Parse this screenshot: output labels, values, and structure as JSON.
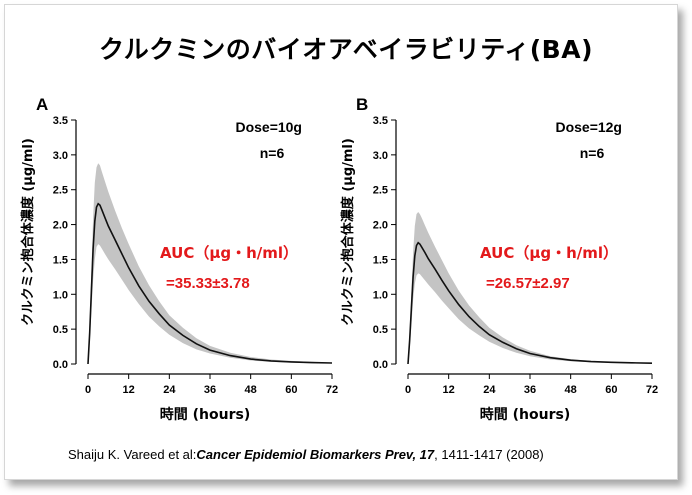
{
  "title": "クルクミンのバイオアベイラビリティ(BA)",
  "citation": {
    "authors": "Shaiju K. Vareed et al:",
    "journal": "Cancer Epidemiol Biomarkers Prev, 17",
    "pages": ", 1411-1417 (2008)"
  },
  "colors": {
    "band": "#c4c4c4",
    "line": "#111111",
    "auc": "#e3191b"
  },
  "chart_data": [
    {
      "type": "line",
      "panel_label": "A",
      "annotation_dose": "Dose=10g",
      "annotation_n": "n=6",
      "auc_label": "AUC（μg・h/ml）",
      "auc_value": "=35.33±3.78",
      "xlabel": "時間 (hours)",
      "ylabel": "クルクミン抱合体濃度 (μg/ml)",
      "xlim": [
        0,
        72
      ],
      "ylim": [
        0,
        3.5
      ],
      "xticks": [
        "0",
        "12",
        "24",
        "36",
        "48",
        "60",
        "72"
      ],
      "yticks": [
        "0.0",
        "0.5",
        "1.0",
        "1.5",
        "2.0",
        "2.5",
        "3.0",
        "3.5"
      ],
      "x": [
        0,
        0.5,
        1,
        1.5,
        2,
        2.5,
        3,
        3.5,
        4,
        5,
        6,
        8,
        10,
        12,
        15,
        18,
        21,
        24,
        28,
        32,
        36,
        42,
        48,
        54,
        60,
        66,
        72
      ],
      "series": [
        {
          "role": "mean",
          "values": [
            0,
            0.45,
            1.05,
            1.65,
            2.05,
            2.25,
            2.3,
            2.28,
            2.22,
            2.1,
            1.98,
            1.78,
            1.58,
            1.38,
            1.12,
            0.9,
            0.72,
            0.56,
            0.41,
            0.29,
            0.2,
            0.12,
            0.07,
            0.045,
            0.03,
            0.02,
            0.015
          ]
        },
        {
          "role": "upper",
          "values": [
            0,
            0.6,
            1.35,
            2.1,
            2.6,
            2.82,
            2.88,
            2.85,
            2.77,
            2.62,
            2.47,
            2.2,
            1.95,
            1.72,
            1.4,
            1.13,
            0.9,
            0.7,
            0.52,
            0.37,
            0.26,
            0.16,
            0.1,
            0.065,
            0.045,
            0.03,
            0.02
          ]
        },
        {
          "role": "lower",
          "values": [
            0,
            0.3,
            0.75,
            1.2,
            1.5,
            1.68,
            1.72,
            1.7,
            1.66,
            1.58,
            1.5,
            1.36,
            1.21,
            1.06,
            0.86,
            0.68,
            0.54,
            0.42,
            0.3,
            0.21,
            0.15,
            0.09,
            0.05,
            0.03,
            0.02,
            0.012,
            0.01
          ]
        }
      ]
    },
    {
      "type": "line",
      "panel_label": "B",
      "annotation_dose": "Dose=12g",
      "annotation_n": "n=6",
      "auc_label": "AUC（μg・h/ml）",
      "auc_value": "=26.57±2.97",
      "xlabel": "時間 (hours)",
      "ylabel": "クルクミン抱合体濃度 (μg/ml)",
      "xlim": [
        0,
        72
      ],
      "ylim": [
        0,
        3.5
      ],
      "xticks": [
        "0",
        "12",
        "24",
        "36",
        "48",
        "60",
        "72"
      ],
      "yticks": [
        "0.0",
        "0.5",
        "1.0",
        "1.5",
        "2.0",
        "2.5",
        "3.0",
        "3.5"
      ],
      "x": [
        0,
        0.5,
        1,
        1.5,
        2,
        2.5,
        3,
        3.5,
        4,
        5,
        6,
        8,
        10,
        12,
        15,
        18,
        21,
        24,
        28,
        32,
        36,
        42,
        48,
        54,
        60,
        66,
        72
      ],
      "series": [
        {
          "role": "mean",
          "values": [
            0,
            0.35,
            0.8,
            1.25,
            1.55,
            1.7,
            1.74,
            1.72,
            1.68,
            1.6,
            1.51,
            1.36,
            1.2,
            1.05,
            0.85,
            0.68,
            0.54,
            0.42,
            0.31,
            0.22,
            0.15,
            0.09,
            0.055,
            0.035,
            0.025,
            0.017,
            0.012
          ]
        },
        {
          "role": "upper",
          "values": [
            0,
            0.48,
            1.05,
            1.6,
            1.98,
            2.15,
            2.18,
            2.15,
            2.1,
            1.99,
            1.88,
            1.68,
            1.49,
            1.3,
            1.05,
            0.84,
            0.67,
            0.52,
            0.38,
            0.27,
            0.19,
            0.11,
            0.07,
            0.045,
            0.03,
            0.02,
            0.015
          ]
        },
        {
          "role": "lower",
          "values": [
            0,
            0.22,
            0.55,
            0.92,
            1.15,
            1.27,
            1.3,
            1.29,
            1.26,
            1.2,
            1.14,
            1.03,
            0.91,
            0.8,
            0.64,
            0.51,
            0.41,
            0.32,
            0.23,
            0.16,
            0.11,
            0.065,
            0.04,
            0.025,
            0.018,
            0.012,
            0.008
          ]
        }
      ]
    }
  ]
}
